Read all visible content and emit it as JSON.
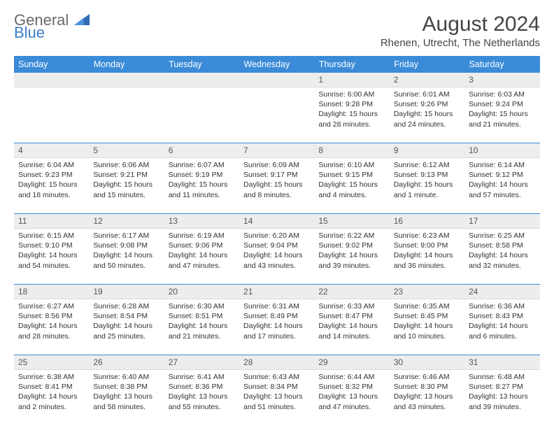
{
  "brand": {
    "text1": "General",
    "text2": "Blue"
  },
  "title": "August 2024",
  "location": "Rhenen, Utrecht, The Netherlands",
  "colors": {
    "header_bg": "#3a8bd8",
    "header_text": "#ffffff",
    "daynum_bg": "#ededed",
    "row_divider": "#3a8bd8",
    "text": "#333333",
    "brand_gray": "#6a6a6a",
    "brand_blue": "#3a7fc4"
  },
  "typography": {
    "title_fontsize": 30,
    "location_fontsize": 15,
    "header_fontsize": 12.5,
    "daynum_fontsize": 12,
    "cell_fontsize": 10.5
  },
  "weekdays": [
    "Sunday",
    "Monday",
    "Tuesday",
    "Wednesday",
    "Thursday",
    "Friday",
    "Saturday"
  ],
  "weeks": [
    [
      null,
      null,
      null,
      null,
      {
        "num": "1",
        "sunrise": "Sunrise: 6:00 AM",
        "sunset": "Sunset: 9:28 PM",
        "daylight": "Daylight: 15 hours and 28 minutes."
      },
      {
        "num": "2",
        "sunrise": "Sunrise: 6:01 AM",
        "sunset": "Sunset: 9:26 PM",
        "daylight": "Daylight: 15 hours and 24 minutes."
      },
      {
        "num": "3",
        "sunrise": "Sunrise: 6:03 AM",
        "sunset": "Sunset: 9:24 PM",
        "daylight": "Daylight: 15 hours and 21 minutes."
      }
    ],
    [
      {
        "num": "4",
        "sunrise": "Sunrise: 6:04 AM",
        "sunset": "Sunset: 9:23 PM",
        "daylight": "Daylight: 15 hours and 18 minutes."
      },
      {
        "num": "5",
        "sunrise": "Sunrise: 6:06 AM",
        "sunset": "Sunset: 9:21 PM",
        "daylight": "Daylight: 15 hours and 15 minutes."
      },
      {
        "num": "6",
        "sunrise": "Sunrise: 6:07 AM",
        "sunset": "Sunset: 9:19 PM",
        "daylight": "Daylight: 15 hours and 11 minutes."
      },
      {
        "num": "7",
        "sunrise": "Sunrise: 6:09 AM",
        "sunset": "Sunset: 9:17 PM",
        "daylight": "Daylight: 15 hours and 8 minutes."
      },
      {
        "num": "8",
        "sunrise": "Sunrise: 6:10 AM",
        "sunset": "Sunset: 9:15 PM",
        "daylight": "Daylight: 15 hours and 4 minutes."
      },
      {
        "num": "9",
        "sunrise": "Sunrise: 6:12 AM",
        "sunset": "Sunset: 9:13 PM",
        "daylight": "Daylight: 15 hours and 1 minute."
      },
      {
        "num": "10",
        "sunrise": "Sunrise: 6:14 AM",
        "sunset": "Sunset: 9:12 PM",
        "daylight": "Daylight: 14 hours and 57 minutes."
      }
    ],
    [
      {
        "num": "11",
        "sunrise": "Sunrise: 6:15 AM",
        "sunset": "Sunset: 9:10 PM",
        "daylight": "Daylight: 14 hours and 54 minutes."
      },
      {
        "num": "12",
        "sunrise": "Sunrise: 6:17 AM",
        "sunset": "Sunset: 9:08 PM",
        "daylight": "Daylight: 14 hours and 50 minutes."
      },
      {
        "num": "13",
        "sunrise": "Sunrise: 6:19 AM",
        "sunset": "Sunset: 9:06 PM",
        "daylight": "Daylight: 14 hours and 47 minutes."
      },
      {
        "num": "14",
        "sunrise": "Sunrise: 6:20 AM",
        "sunset": "Sunset: 9:04 PM",
        "daylight": "Daylight: 14 hours and 43 minutes."
      },
      {
        "num": "15",
        "sunrise": "Sunrise: 6:22 AM",
        "sunset": "Sunset: 9:02 PM",
        "daylight": "Daylight: 14 hours and 39 minutes."
      },
      {
        "num": "16",
        "sunrise": "Sunrise: 6:23 AM",
        "sunset": "Sunset: 9:00 PM",
        "daylight": "Daylight: 14 hours and 36 minutes."
      },
      {
        "num": "17",
        "sunrise": "Sunrise: 6:25 AM",
        "sunset": "Sunset: 8:58 PM",
        "daylight": "Daylight: 14 hours and 32 minutes."
      }
    ],
    [
      {
        "num": "18",
        "sunrise": "Sunrise: 6:27 AM",
        "sunset": "Sunset: 8:56 PM",
        "daylight": "Daylight: 14 hours and 28 minutes."
      },
      {
        "num": "19",
        "sunrise": "Sunrise: 6:28 AM",
        "sunset": "Sunset: 8:54 PM",
        "daylight": "Daylight: 14 hours and 25 minutes."
      },
      {
        "num": "20",
        "sunrise": "Sunrise: 6:30 AM",
        "sunset": "Sunset: 8:51 PM",
        "daylight": "Daylight: 14 hours and 21 minutes."
      },
      {
        "num": "21",
        "sunrise": "Sunrise: 6:31 AM",
        "sunset": "Sunset: 8:49 PM",
        "daylight": "Daylight: 14 hours and 17 minutes."
      },
      {
        "num": "22",
        "sunrise": "Sunrise: 6:33 AM",
        "sunset": "Sunset: 8:47 PM",
        "daylight": "Daylight: 14 hours and 14 minutes."
      },
      {
        "num": "23",
        "sunrise": "Sunrise: 6:35 AM",
        "sunset": "Sunset: 8:45 PM",
        "daylight": "Daylight: 14 hours and 10 minutes."
      },
      {
        "num": "24",
        "sunrise": "Sunrise: 6:36 AM",
        "sunset": "Sunset: 8:43 PM",
        "daylight": "Daylight: 14 hours and 6 minutes."
      }
    ],
    [
      {
        "num": "25",
        "sunrise": "Sunrise: 6:38 AM",
        "sunset": "Sunset: 8:41 PM",
        "daylight": "Daylight: 14 hours and 2 minutes."
      },
      {
        "num": "26",
        "sunrise": "Sunrise: 6:40 AM",
        "sunset": "Sunset: 8:38 PM",
        "daylight": "Daylight: 13 hours and 58 minutes."
      },
      {
        "num": "27",
        "sunrise": "Sunrise: 6:41 AM",
        "sunset": "Sunset: 8:36 PM",
        "daylight": "Daylight: 13 hours and 55 minutes."
      },
      {
        "num": "28",
        "sunrise": "Sunrise: 6:43 AM",
        "sunset": "Sunset: 8:34 PM",
        "daylight": "Daylight: 13 hours and 51 minutes."
      },
      {
        "num": "29",
        "sunrise": "Sunrise: 6:44 AM",
        "sunset": "Sunset: 8:32 PM",
        "daylight": "Daylight: 13 hours and 47 minutes."
      },
      {
        "num": "30",
        "sunrise": "Sunrise: 6:46 AM",
        "sunset": "Sunset: 8:30 PM",
        "daylight": "Daylight: 13 hours and 43 minutes."
      },
      {
        "num": "31",
        "sunrise": "Sunrise: 6:48 AM",
        "sunset": "Sunset: 8:27 PM",
        "daylight": "Daylight: 13 hours and 39 minutes."
      }
    ]
  ]
}
